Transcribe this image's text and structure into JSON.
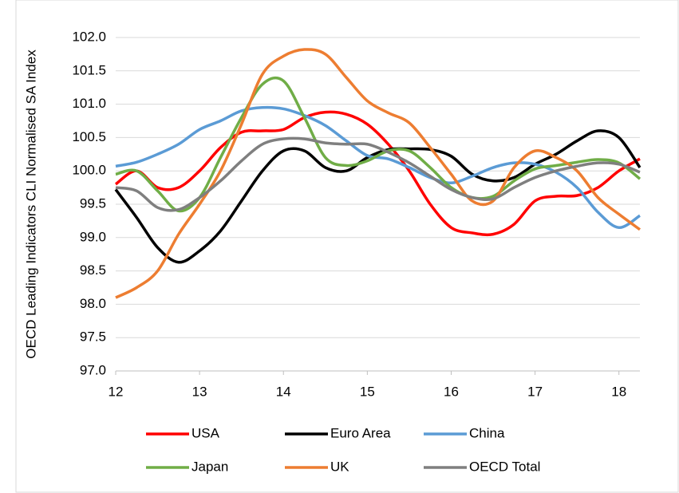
{
  "chart_data": {
    "type": "line",
    "y_label": "OECD Leading Indicators CLI Normalised SA Index",
    "x": [
      12,
      12.25,
      12.5,
      12.75,
      13,
      13.25,
      13.5,
      13.75,
      14,
      14.25,
      14.5,
      14.75,
      15,
      15.25,
      15.5,
      15.75,
      16,
      16.25,
      16.5,
      16.75,
      17,
      17.25,
      17.5,
      17.75,
      18,
      18.25
    ],
    "xlim": [
      12,
      18.25
    ],
    "xticks": [
      12,
      13,
      14,
      15,
      16,
      17,
      18
    ],
    "ylim": [
      97,
      102
    ],
    "yticks": [
      {
        "value": 97,
        "label": "97.0"
      },
      {
        "value": 97.5,
        "label": "97.5"
      },
      {
        "value": 98,
        "label": "98.0"
      },
      {
        "value": 98.5,
        "label": "98.5"
      },
      {
        "value": 99,
        "label": "99.0"
      },
      {
        "value": 99.5,
        "label": "99.5"
      },
      {
        "value": 100,
        "label": "100.0"
      },
      {
        "value": 100.5,
        "label": "100.5"
      },
      {
        "value": 101,
        "label": "101.0"
      },
      {
        "value": 101.5,
        "label": "101.5"
      },
      {
        "value": 102,
        "label": "102.0"
      }
    ],
    "grid": true,
    "legend": "bottom",
    "series": [
      {
        "name": "USA",
        "color": "#ff0000",
        "values": [
          99.8,
          100.0,
          99.75,
          99.75,
          100.0,
          100.35,
          100.58,
          100.6,
          100.62,
          100.8,
          100.88,
          100.85,
          100.7,
          100.4,
          100.0,
          99.5,
          99.15,
          99.07,
          99.05,
          99.2,
          99.55,
          99.62,
          99.63,
          99.75,
          100.0,
          100.18
        ]
      },
      {
        "name": "Euro Area",
        "color": "#000000",
        "values": [
          99.72,
          99.3,
          98.85,
          98.63,
          98.8,
          99.1,
          99.55,
          100.0,
          100.3,
          100.3,
          100.05,
          100.0,
          100.2,
          100.32,
          100.33,
          100.32,
          100.22,
          99.95,
          99.85,
          99.9,
          100.1,
          100.25,
          100.45,
          100.6,
          100.5,
          100.05
        ]
      },
      {
        "name": "China",
        "color": "#5b9bd5",
        "values": [
          100.07,
          100.13,
          100.25,
          100.4,
          100.62,
          100.75,
          100.9,
          100.95,
          100.93,
          100.83,
          100.68,
          100.45,
          100.23,
          100.18,
          100.05,
          99.9,
          99.82,
          99.92,
          100.05,
          100.12,
          100.1,
          99.98,
          99.75,
          99.38,
          99.15,
          99.33
        ]
      },
      {
        "name": "Japan",
        "color": "#70ad47",
        "values": [
          99.95,
          100.0,
          99.7,
          99.4,
          99.6,
          100.2,
          100.8,
          101.3,
          101.35,
          100.8,
          100.2,
          100.08,
          100.15,
          100.3,
          100.3,
          100.05,
          99.75,
          99.6,
          99.62,
          99.85,
          100.03,
          100.08,
          100.13,
          100.17,
          100.12,
          99.88
        ]
      },
      {
        "name": "UK",
        "color": "#ed7d31",
        "values": [
          98.1,
          98.25,
          98.5,
          99.05,
          99.5,
          100.0,
          100.7,
          101.45,
          101.72,
          101.82,
          101.75,
          101.4,
          101.05,
          100.87,
          100.72,
          100.35,
          99.95,
          99.55,
          99.55,
          100.05,
          100.3,
          100.2,
          100.0,
          99.6,
          99.35,
          99.12
        ]
      },
      {
        "name": "OECD Total",
        "color": "#7f7f7f",
        "values": [
          99.75,
          99.7,
          99.45,
          99.42,
          99.6,
          99.85,
          100.15,
          100.4,
          100.48,
          100.48,
          100.42,
          100.4,
          100.4,
          100.28,
          100.12,
          99.92,
          99.72,
          99.6,
          99.58,
          99.75,
          99.9,
          100.0,
          100.07,
          100.12,
          100.1,
          99.98
        ]
      }
    ]
  }
}
